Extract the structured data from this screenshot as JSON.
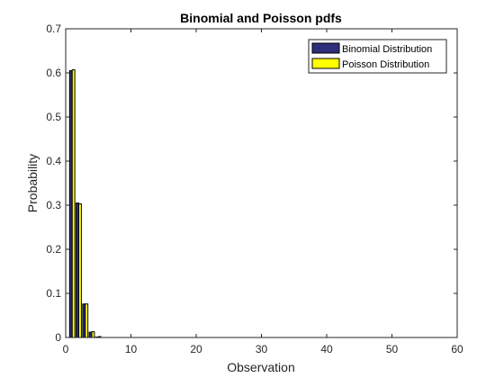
{
  "chart_data": {
    "type": "bar",
    "title": "Binomial and Poisson pdfs",
    "xlabel": "Observation",
    "ylabel": "Probability",
    "xlim": [
      0,
      60
    ],
    "ylim": [
      0,
      0.7
    ],
    "x_ticks": [
      "0",
      "10",
      "20",
      "30",
      "40",
      "50",
      "60"
    ],
    "y_ticks": [
      "0",
      "0.1",
      "0.2",
      "0.3",
      "0.4",
      "0.5",
      "0.6",
      "0.7"
    ],
    "grid": false,
    "legend_position": "top-right",
    "x": [
      0,
      1,
      2,
      3,
      4,
      5
    ],
    "series": [
      {
        "name": "Binomial Distribution",
        "color": "#2e2e7a",
        "values": [
          0.0,
          0.605,
          0.305,
          0.076,
          0.012,
          0.001
        ]
      },
      {
        "name": "Poisson Distribution",
        "color": "#ffff00",
        "values": [
          0.0,
          0.607,
          0.303,
          0.076,
          0.013,
          0.002
        ]
      }
    ]
  }
}
